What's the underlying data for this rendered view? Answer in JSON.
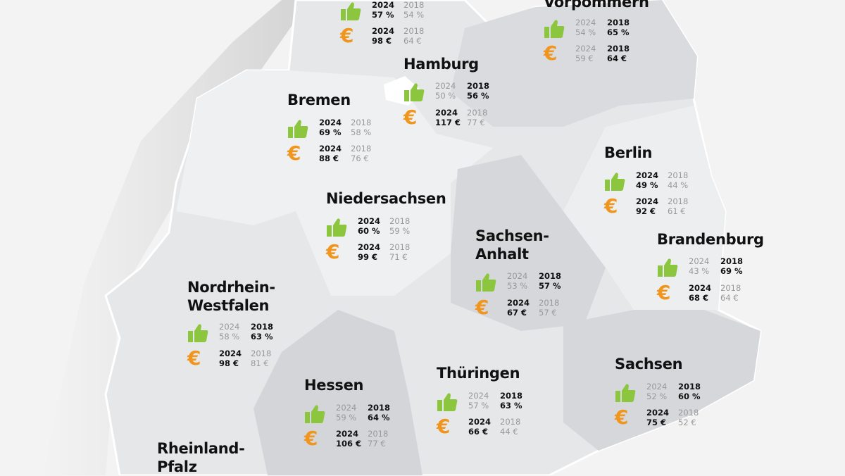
{
  "legend": {
    "year_new": "2024",
    "year_old": "2018"
  },
  "colors": {
    "approval": "#8cc63f",
    "price": "#f0961e",
    "background": "#f3f3f3"
  },
  "icons": {
    "approval": "thumbs-up-icon",
    "price": "euro-icon",
    "euro_symbol": "€"
  },
  "states": [
    {
      "name": "",
      "approval": {
        "y2024": "57 %",
        "y2018": "54 %"
      },
      "price": {
        "y2024": "98 €",
        "y2018": "64 €"
      },
      "bold": {
        "approval": "2024",
        "price": "2024"
      }
    },
    {
      "name": "Vorpommern",
      "approval": {
        "y2024": "54 %",
        "y2018": "65 %"
      },
      "price": {
        "y2024": "59 €",
        "y2018": "64 €"
      },
      "bold": {
        "approval": "2018",
        "price": "2018"
      }
    },
    {
      "name": "Hamburg",
      "approval": {
        "y2024": "50 %",
        "y2018": "56 %"
      },
      "price": {
        "y2024": "117 €",
        "y2018": "77 €"
      },
      "bold": {
        "approval": "2018",
        "price": "2024"
      }
    },
    {
      "name": "Bremen",
      "approval": {
        "y2024": "69 %",
        "y2018": "58 %"
      },
      "price": {
        "y2024": "88 €",
        "y2018": "76 €"
      },
      "bold": {
        "approval": "2024",
        "price": "2024"
      }
    },
    {
      "name": "Berlin",
      "approval": {
        "y2024": "49 %",
        "y2018": "44 %"
      },
      "price": {
        "y2024": "92 €",
        "y2018": "61 €"
      },
      "bold": {
        "approval": "2024",
        "price": "2024"
      }
    },
    {
      "name": "Niedersachsen",
      "approval": {
        "y2024": "60 %",
        "y2018": "59 %"
      },
      "price": {
        "y2024": "99 €",
        "y2018": "71 €"
      },
      "bold": {
        "approval": "2024",
        "price": "2024"
      }
    },
    {
      "name": "Sachsen-\nAnhalt",
      "approval": {
        "y2024": "53 %",
        "y2018": "57 %"
      },
      "price": {
        "y2024": "67 €",
        "y2018": "57 €"
      },
      "bold": {
        "approval": "2018",
        "price": "2024"
      }
    },
    {
      "name": "Brandenburg",
      "approval": {
        "y2024": "43 %",
        "y2018": "69 %"
      },
      "price": {
        "y2024": "68 €",
        "y2018": "64 €"
      },
      "bold": {
        "approval": "2018",
        "price": "2024"
      }
    },
    {
      "name": "Nordrhein-\nWestfalen",
      "approval": {
        "y2024": "58 %",
        "y2018": "63 %"
      },
      "price": {
        "y2024": "98 €",
        "y2018": "81 €"
      },
      "bold": {
        "approval": "2018",
        "price": "2024"
      }
    },
    {
      "name": "Hessen",
      "approval": {
        "y2024": "59 %",
        "y2018": "64 %"
      },
      "price": {
        "y2024": "106 €",
        "y2018": "77 €"
      },
      "bold": {
        "approval": "2018",
        "price": "2024"
      }
    },
    {
      "name": "Thüringen",
      "approval": {
        "y2024": "57 %",
        "y2018": "63 %"
      },
      "price": {
        "y2024": "66 €",
        "y2018": "44 €"
      },
      "bold": {
        "approval": "2018",
        "price": "2024"
      }
    },
    {
      "name": "Sachsen",
      "approval": {
        "y2024": "52 %",
        "y2018": "60 %"
      },
      "price": {
        "y2024": "75 €",
        "y2018": "52 €"
      },
      "bold": {
        "approval": "2018",
        "price": "2024"
      }
    },
    {
      "name": "Rheinland-\nPfalz"
    }
  ]
}
